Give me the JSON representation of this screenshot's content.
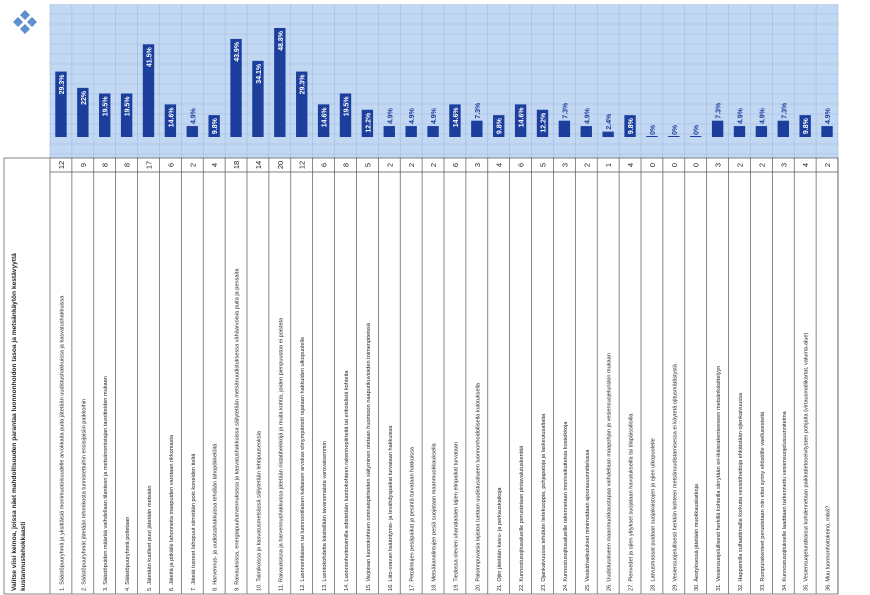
{
  "header": {
    "question": "Valitse viisi keinoa, joissa näet mahdollisuuden parantaa luonnonhoidon tasoa ja metsänkäytön kestävyyttä kustannustehokkaasti"
  },
  "colors": {
    "bar": "#1c3f9e",
    "plot_bg": "#c2d7f1",
    "grid": "#9fbde3",
    "text": "#222222",
    "border": "#555555",
    "logo_diamond": "#5e8fd0"
  },
  "icons": {
    "logo": "diamond-logo-icon"
  },
  "chart_data": {
    "type": "bar",
    "orientation": "vertical",
    "grid": true,
    "legend": "none",
    "ylim": [
      0,
      50
    ],
    "categories": [
      "1. Säästöpuuryhmä ja yksittäisiä monimuotoisuudelle arvokkaita puita jätetään uudistushakkuissa ja kasvatushakkuissa",
      "2. Säästöpuuryhmät jätetään lehmikosta tunnistettuihin ensisijaisiin paikkoihin",
      "3. Säästöpuiden määrää vaihdellaan tilanteen ja metsänomistajan tavoitteiden mukaan",
      "4. Säästöpuuryhmiä poltetaan",
      "5. Jätetään kuolleet puut jätetään metsään",
      "6. Jäteitä ja pitkäile lahonneita maapuiden varotaan rikkomasta",
      "7. Jäteät tuoreet lahopuut siirretään pois koneiden tieltä",
      "8. Harvennus- ja uudistushakkuissa tehdään lahopökkelöitä",
      "9. Raivauksissa, energiapuuharvennuksissa ja kasvatushakkuissa säilytetään metsänuudistuksessa vähäarvoisia puita ja pensaita",
      "10. Taimikoissa ja kasvatusmetsässä säilytetään lehtipuuseoksia",
      "11. Raivauksissa ja harvennushakkuissa jätetään riistatiheikköjä ja muita kohtia, joiden pienpuustoa ei poisteta",
      "12. Luonnontilaisen tai luonnontilaisen kaltaisen arvokas elinympäristö rajataan hakkuiden ulkopuolelle",
      "13. Luontokohdetta käsitellään tavanomaista varovaisemmin",
      "14. Luonnonhoitotoimilla edistetään luontokohteen rakennepiirteitä tai erikoislisiä kohteita",
      "15. Varjoisan luontokohteen ominaispiirteiden säilyminen otetaan huomioon naapurikuvioiden toimenpiteissä",
      "16. Liito-oravan lisääntymis- ja levähdyspaikat turvataan hakkuissa",
      "17. Petolintujen pesäpaikat ja pesintä turvataan hakkuissa",
      "18. Metsäkanalintujen pesiä suojataan maanmuokkauksella",
      "19. Tiedossa olevien uhanalaisten lajien elinpaikat turvataan",
      "20. Paloinnpuvaisia lajistoa tuetaan uudistusalueen luonnonhoidollisella kulotuksella",
      "21. Ojiin jätetään kaivu- ja perkauskatkoja",
      "22. Kunnostusojitusalueille perustetaan pintavalutuskenttiä",
      "23. Ojankaivuussa tehdään lietekuoppia, pohjapatoja ja laskeutusaltaita",
      "24. Kunnostusojitusalueille rakennetaan monivaikutteisia kosteikkoja",
      "25. Vesistövaikutukset minimoidaan ajourasuunnittelussa",
      "26. Uudistusalueen maanmuokkaustapaa vaihdellaan maapohjan ja vesiensuojeluriskin mukaan",
      "27. Pienvedet ja ojien ylitykset suojataan havutukseilla tai tilapäissilloilla",
      "28. Latvusmassat puidaan suojakaistojen ja ojien ulkopuolelle",
      "29. Vesiensuojelullisesti herkkiin kohteen metsänuudistamisessa ei käytetä ojitusmätästystä",
      "30. Äestyksessä jätetään muokkauskatkoja",
      "31. Vesiensuojelullisesti herkillä kohteilla siirrytään eri-ikäisrakenteeseen metsänkäsittelyyn",
      "32. Happamilla sulfaattimailla korkutta vesistöhaittoja ehkäistään ojienkaivuussa",
      "33. Rumpurakenteet perustetaan niin ettei synny eliöstölle vaellusesteitä",
      "34. Kunnostusojitukselle laaditaan tarkennettu vesiensuojelusuunnitelma",
      "35. Vesiensuojeluratkaisut kohdennetaan paikkatietoselvitysten pohjalta (virtausmallikartat, valuma-alue)",
      "36. Muu luonnonhoitokeino, mikä?"
    ],
    "counts": [
      12,
      9,
      8,
      8,
      17,
      6,
      2,
      4,
      18,
      14,
      20,
      12,
      6,
      8,
      5,
      2,
      2,
      2,
      6,
      3,
      4,
      6,
      5,
      3,
      2,
      1,
      4,
      0,
      0,
      0,
      3,
      2,
      2,
      3,
      4,
      2
    ],
    "values": [
      29.3,
      22,
      19.5,
      19.5,
      41.5,
      14.6,
      4.9,
      9.8,
      43.9,
      34.1,
      48.8,
      29.3,
      14.6,
      19.5,
      12.2,
      4.9,
      4.9,
      4.9,
      14.6,
      7.3,
      9.8,
      14.6,
      12.2,
      7.3,
      4.9,
      2.4,
      9.8,
      0,
      0,
      0,
      7.3,
      4.9,
      4.9,
      7.3,
      9.8,
      4.9
    ],
    "value_labels": [
      "29.3%",
      "22%",
      "19.5%",
      "19.5%",
      "41.5%",
      "14.6%",
      "4.9%",
      "9.8%",
      "43.9%",
      "34.1%",
      "48.8%",
      "29.3%",
      "14.6%",
      "19.5%",
      "12.2%",
      "4.9%",
      "4.9%",
      "4.9%",
      "14.6%",
      "7.3%",
      "9.8%",
      "14.6%",
      "12.2%",
      "7.3%",
      "4.9%",
      "2.4%",
      "9.8%",
      "0%",
      "0%",
      "0%",
      "7.3%",
      "4.9%",
      "4.9%",
      "7.3%",
      "9.8%",
      "4.9%"
    ]
  }
}
